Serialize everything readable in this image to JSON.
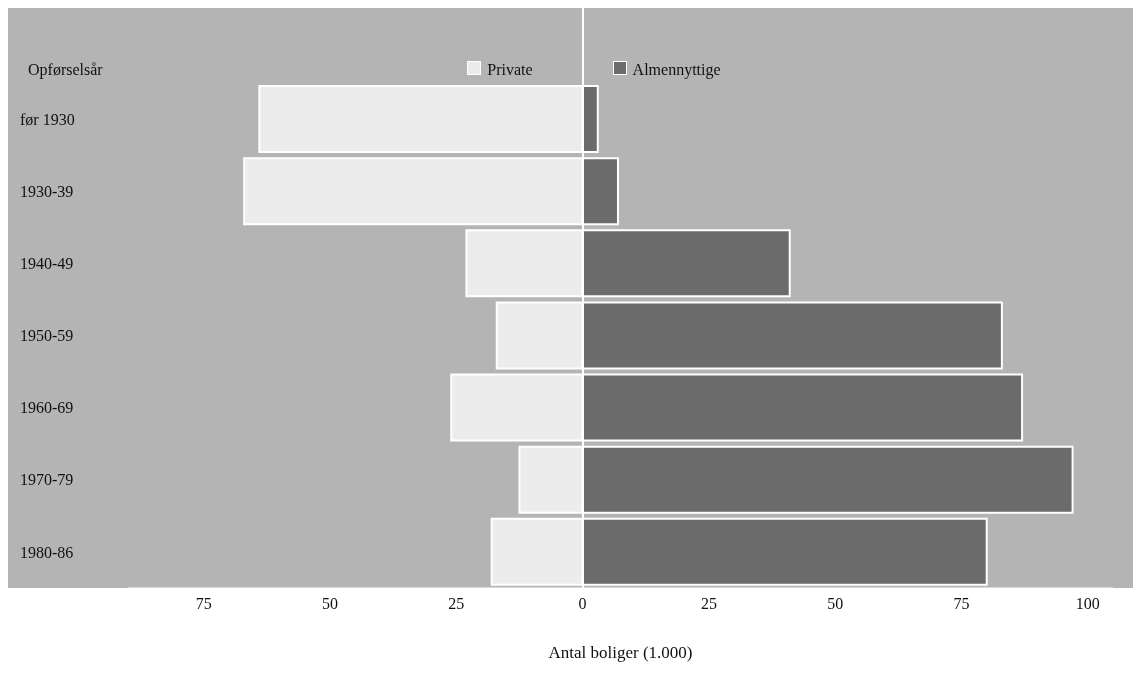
{
  "chart_data": {
    "type": "bar",
    "orientation": "horizontal",
    "stacked": true,
    "xlabel": "Antal boliger (1.000)",
    "ylabel": "Opførselsår",
    "categories": [
      "før 1930",
      "1930-39",
      "1940-49",
      "1950-59",
      "1960-69",
      "1970-79",
      "1980-86"
    ],
    "series": [
      {
        "name": "Private",
        "color": "#ececec",
        "values": [
          -64,
          -67,
          -23,
          -17,
          -26,
          -12.5,
          -18
        ]
      },
      {
        "name": "Almennyttige",
        "color": "#6b6b6b",
        "values": [
          3,
          7,
          41,
          83,
          87,
          97,
          80
        ]
      }
    ],
    "xlim": [
      -90,
      105
    ],
    "xticks": [
      {
        "value": -75,
        "label": "75"
      },
      {
        "value": -50,
        "label": "50"
      },
      {
        "value": -25,
        "label": "25"
      },
      0,
      25,
      50,
      75,
      100
    ],
    "legend": "top"
  }
}
